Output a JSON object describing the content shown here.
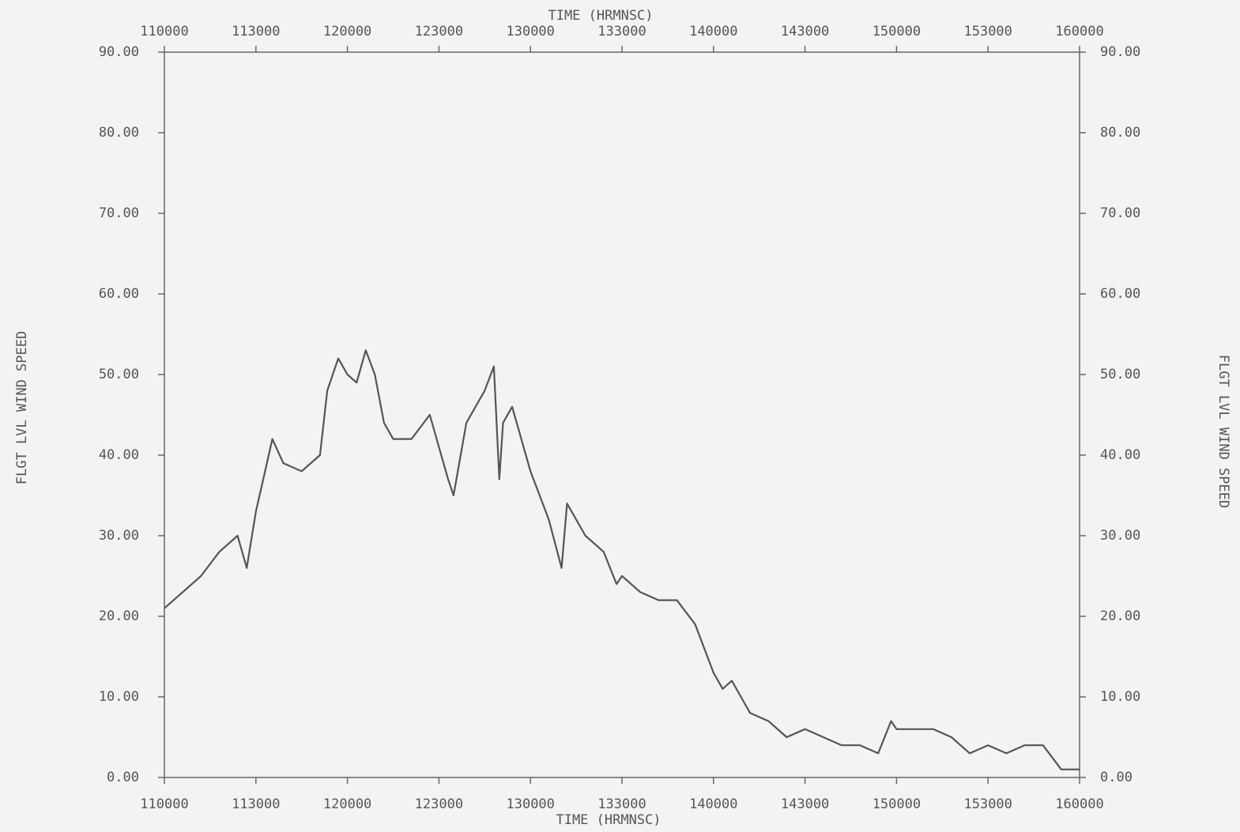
{
  "chart_data": {
    "type": "line",
    "x_label": "TIME (HRMNSC)",
    "y_label": "FLGT LVL WIND SPEED",
    "xlim": [
      11,
      16
    ],
    "xticks": [
      {
        "value": 11,
        "label": "110000"
      },
      {
        "value": 11.5,
        "label": "113000"
      },
      {
        "value": 12,
        "label": "120000"
      },
      {
        "value": 12.5,
        "label": "123000"
      },
      {
        "value": 13,
        "label": "130000"
      },
      {
        "value": 13.5,
        "label": "133000"
      },
      {
        "value": 14,
        "label": "140000"
      },
      {
        "value": 14.5,
        "label": "143000"
      },
      {
        "value": 15,
        "label": "150000"
      },
      {
        "value": 15.5,
        "label": "153000"
      },
      {
        "value": 16,
        "label": "160000"
      }
    ],
    "ylim": [
      0,
      90
    ],
    "yticks": [
      {
        "value": 0,
        "label": "0.00"
      },
      {
        "value": 10,
        "label": "10.00"
      },
      {
        "value": 20,
        "label": "20.00"
      },
      {
        "value": 30,
        "label": "30.00"
      },
      {
        "value": 40,
        "label": "40.00"
      },
      {
        "value": 50,
        "label": "50.00"
      },
      {
        "value": 60,
        "label": "60.00"
      },
      {
        "value": 70,
        "label": "70.00"
      },
      {
        "value": 80,
        "label": "80.00"
      },
      {
        "value": 90,
        "label": "90.00"
      }
    ],
    "color": "#555555",
    "x": [
      11.0,
      11.1,
      11.2,
      11.3,
      11.4,
      11.45,
      11.5,
      11.55,
      11.59,
      11.65,
      11.75,
      11.85,
      11.89,
      11.95,
      12.0,
      12.05,
      12.1,
      12.15,
      12.2,
      12.25,
      12.35,
      12.45,
      12.5,
      12.55,
      12.58,
      12.65,
      12.75,
      12.8,
      12.83,
      12.85,
      12.9,
      12.95,
      13.0,
      13.1,
      13.17,
      13.2,
      13.3,
      13.4,
      13.47,
      13.5,
      13.6,
      13.7,
      13.8,
      13.9,
      14.0,
      14.05,
      14.1,
      14.2,
      14.3,
      14.4,
      14.5,
      14.6,
      14.7,
      14.8,
      14.9,
      14.97,
      15.0,
      15.1,
      15.2,
      15.3,
      15.4,
      15.5,
      15.6,
      15.7,
      15.8,
      15.9,
      16.0
    ],
    "values": [
      21,
      23,
      25,
      28,
      30,
      26,
      33,
      38,
      42,
      39,
      38,
      40,
      48,
      52,
      50,
      49,
      53,
      50,
      44,
      42,
      42,
      45,
      41,
      37,
      35,
      44,
      48,
      51,
      37,
      44,
      46,
      42,
      38,
      32,
      26,
      34,
      30,
      28,
      24,
      25,
      23,
      22,
      22,
      19,
      13,
      11,
      12,
      8,
      7,
      5,
      6,
      5,
      4,
      4,
      3,
      7,
      6,
      6,
      6,
      5,
      3,
      4,
      3,
      4,
      4,
      1,
      1
    ]
  }
}
